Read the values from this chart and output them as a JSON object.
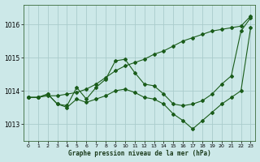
{
  "background_color": "#cce8e8",
  "grid_color": "#aacccc",
  "line_color": "#1a5c1a",
  "title": "Graphe pression niveau de la mer (hPa)",
  "xlim": [
    -0.5,
    23.5
  ],
  "ylim": [
    1012.5,
    1016.6
  ],
  "yticks": [
    1013,
    1014,
    1015,
    1016
  ],
  "xticks": [
    0,
    1,
    2,
    3,
    4,
    5,
    6,
    7,
    8,
    9,
    10,
    11,
    12,
    13,
    14,
    15,
    16,
    17,
    18,
    19,
    20,
    21,
    22,
    23
  ],
  "series": [
    {
      "x": [
        0,
        1,
        2,
        3,
        4,
        5,
        6,
        7,
        8,
        9,
        10,
        11,
        12,
        13,
        14,
        15,
        16,
        17,
        18,
        19,
        20,
        21,
        22,
        23
      ],
      "y": [
        1013.8,
        1013.8,
        1013.85,
        1013.85,
        1013.9,
        1013.95,
        1014.05,
        1014.2,
        1014.4,
        1014.6,
        1014.75,
        1014.85,
        1014.95,
        1015.1,
        1015.2,
        1015.35,
        1015.5,
        1015.6,
        1015.7,
        1015.8,
        1015.85,
        1015.9,
        1015.95,
        1016.25
      ]
    },
    {
      "x": [
        0,
        1,
        2,
        3,
        4,
        5,
        6,
        7,
        8,
        9,
        10,
        11,
        12,
        13,
        14,
        15,
        16,
        17,
        18,
        19,
        20,
        21,
        22,
        23
      ],
      "y": [
        1013.8,
        1013.8,
        1013.9,
        1013.6,
        1013.55,
        1014.1,
        1013.75,
        1014.1,
        1014.35,
        1014.9,
        1014.95,
        1014.55,
        1014.2,
        1014.15,
        1013.9,
        1013.6,
        1013.55,
        1013.6,
        1013.7,
        1013.9,
        1014.2,
        1014.45,
        1015.8,
        1016.2
      ]
    },
    {
      "x": [
        0,
        1,
        2,
        3,
        4,
        5,
        6,
        7,
        8,
        9,
        10,
        11,
        12,
        13,
        14,
        15,
        16,
        17,
        18,
        19,
        20,
        21,
        22,
        23
      ],
      "y": [
        1013.8,
        1013.8,
        1013.9,
        1013.6,
        1013.5,
        1013.75,
        1013.65,
        1013.75,
        1013.85,
        1014.0,
        1014.05,
        1013.95,
        1013.8,
        1013.75,
        1013.6,
        1013.3,
        1013.1,
        1012.85,
        1013.1,
        1013.35,
        1013.6,
        1013.8,
        1014.0,
        1015.9
      ]
    }
  ]
}
